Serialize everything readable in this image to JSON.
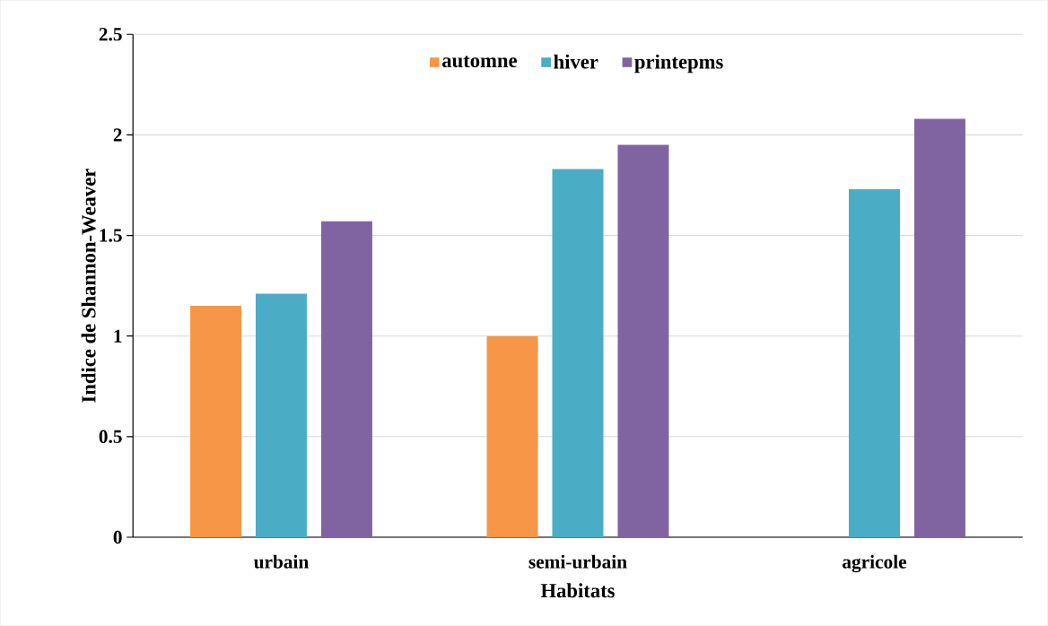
{
  "chart_data": {
    "type": "bar",
    "xlabel": "Habitats",
    "ylabel": "Indice de Shannon-Weaver",
    "categories": [
      "urbain",
      "semi-urbain",
      "agricole"
    ],
    "series": [
      {
        "name": "automne",
        "color": "#f79646",
        "values": [
          1.15,
          1.0,
          null
        ]
      },
      {
        "name": "hiver",
        "color": "#4bacc6",
        "values": [
          1.21,
          1.83,
          1.73
        ]
      },
      {
        "name": "printepms",
        "color": "#8064a2",
        "values": [
          1.57,
          1.95,
          2.08
        ]
      }
    ],
    "ylim": [
      0,
      2.5
    ],
    "yticks": [
      0,
      0.5,
      1,
      1.5,
      2,
      2.5
    ],
    "grid": "y",
    "legend": "top"
  }
}
